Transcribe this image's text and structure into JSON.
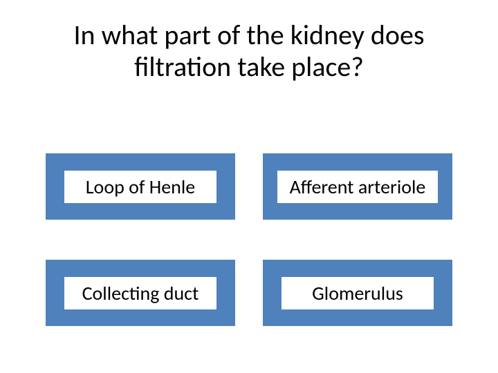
{
  "question": {
    "text": "In what part of the kidney  does filtration take place?",
    "font_size": 40,
    "color": "#000000"
  },
  "options": [
    {
      "label": "Loop of Henle"
    },
    {
      "label": "Afferent arteriole"
    },
    {
      "label": "Collecting duct"
    },
    {
      "label": "Glomerulus"
    }
  ],
  "styling": {
    "option_bg": "#4f81bd",
    "option_text_bg": "#ffffff",
    "option_font_size": 28,
    "background": "#ffffff",
    "grid": {
      "cols": 2,
      "rows": 2,
      "col_gap": 40,
      "row_gap": 58
    }
  }
}
